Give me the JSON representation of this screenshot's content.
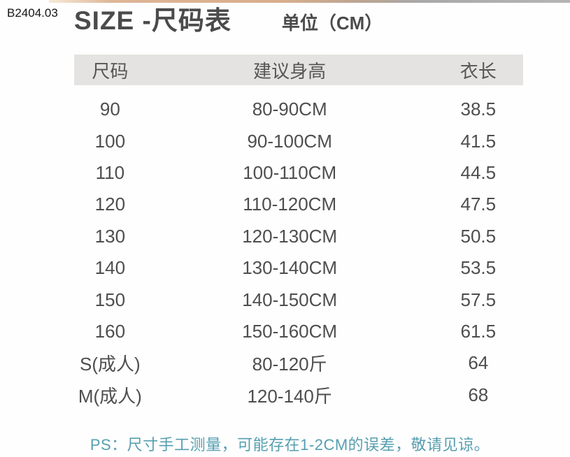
{
  "watermark": "B2404.03",
  "header": {
    "title": "SIZE -尺码表",
    "unit_label": "单位（CM）"
  },
  "table": {
    "columns": [
      "尺码",
      "建议身高",
      "衣长"
    ],
    "rows": [
      [
        "90",
        "80-90CM",
        "38.5"
      ],
      [
        "100",
        "90-100CM",
        "41.5"
      ],
      [
        "110",
        "100-110CM",
        "44.5"
      ],
      [
        "120",
        "110-120CM",
        "47.5"
      ],
      [
        "130",
        "120-130CM",
        "50.5"
      ],
      [
        "140",
        "130-140CM",
        "53.5"
      ],
      [
        "150",
        "140-150CM",
        "57.5"
      ],
      [
        "160",
        "150-160CM",
        "61.5"
      ],
      [
        "S(成人)",
        "80-120斤",
        "64"
      ],
      [
        "M(成人)",
        "120-140斤",
        "68"
      ]
    ]
  },
  "footnote": "PS：尺寸手工测量，可能存在1-2CM的误差，敬请见谅。",
  "colors": {
    "header_bg": "#e4e3e1",
    "body_text": "#4e4e4e",
    "note_text": "#569fb0"
  }
}
